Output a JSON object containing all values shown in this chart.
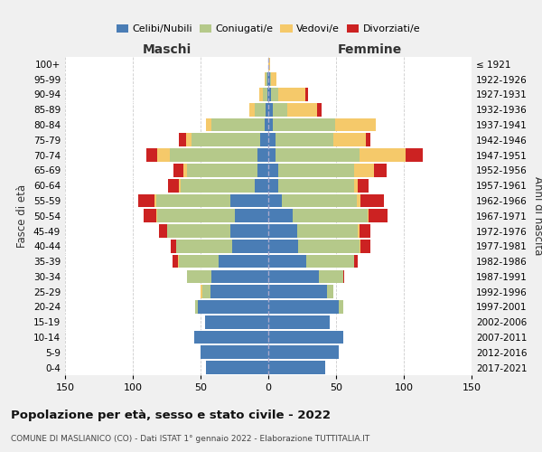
{
  "age_groups": [
    "0-4",
    "5-9",
    "10-14",
    "15-19",
    "20-24",
    "25-29",
    "30-34",
    "35-39",
    "40-44",
    "45-49",
    "50-54",
    "55-59",
    "60-64",
    "65-69",
    "70-74",
    "75-79",
    "80-84",
    "85-89",
    "90-94",
    "95-99",
    "100+"
  ],
  "birth_years": [
    "2017-2021",
    "2012-2016",
    "2007-2011",
    "2002-2006",
    "1997-2001",
    "1992-1996",
    "1987-1991",
    "1982-1986",
    "1977-1981",
    "1972-1976",
    "1967-1971",
    "1962-1966",
    "1957-1961",
    "1952-1956",
    "1947-1951",
    "1942-1946",
    "1937-1941",
    "1932-1936",
    "1927-1931",
    "1922-1926",
    "≤ 1921"
  ],
  "colors": {
    "celibe": "#4a7db5",
    "coniugato": "#b5c98a",
    "vedovo": "#f5c96a",
    "divorziato": "#cc2222"
  },
  "male": {
    "celibe": [
      46,
      50,
      55,
      47,
      52,
      43,
      42,
      37,
      27,
      28,
      25,
      28,
      10,
      8,
      8,
      6,
      3,
      2,
      1,
      1,
      0
    ],
    "coniugato": [
      0,
      0,
      0,
      0,
      2,
      6,
      18,
      29,
      41,
      47,
      57,
      55,
      55,
      52,
      65,
      51,
      39,
      8,
      3,
      1,
      0
    ],
    "vedovo": [
      0,
      0,
      0,
      0,
      0,
      1,
      0,
      1,
      0,
      0,
      1,
      1,
      1,
      3,
      9,
      4,
      4,
      4,
      3,
      1,
      0
    ],
    "divorziato": [
      0,
      0,
      0,
      0,
      0,
      0,
      0,
      4,
      4,
      6,
      9,
      12,
      8,
      7,
      8,
      5,
      0,
      0,
      0,
      0,
      0
    ]
  },
  "female": {
    "nubile": [
      42,
      52,
      55,
      45,
      52,
      43,
      37,
      28,
      22,
      21,
      18,
      10,
      7,
      7,
      5,
      5,
      3,
      3,
      2,
      1,
      0
    ],
    "coniugata": [
      0,
      0,
      0,
      0,
      3,
      5,
      18,
      35,
      45,
      45,
      55,
      55,
      56,
      56,
      62,
      43,
      46,
      11,
      5,
      1,
      0
    ],
    "vedova": [
      0,
      0,
      0,
      0,
      0,
      0,
      0,
      0,
      1,
      1,
      1,
      3,
      3,
      15,
      34,
      24,
      30,
      22,
      20,
      4,
      1
    ],
    "divorziata": [
      0,
      0,
      0,
      0,
      0,
      0,
      1,
      3,
      7,
      8,
      14,
      17,
      8,
      9,
      13,
      3,
      0,
      3,
      2,
      0,
      0
    ]
  },
  "xlim": 150,
  "title": "Popolazione per età, sesso e stato civile - 2022",
  "subtitle": "COMUNE DI MASLIANICO (CO) - Dati ISTAT 1° gennaio 2022 - Elaborazione TUTTITALIA.IT",
  "ylabel_left": "Fasce di età",
  "ylabel_right": "Anni di nascita",
  "xlabel_left": "Maschi",
  "xlabel_right": "Femmine",
  "bg_color": "#f0f0f0",
  "plot_bg": "#ffffff"
}
